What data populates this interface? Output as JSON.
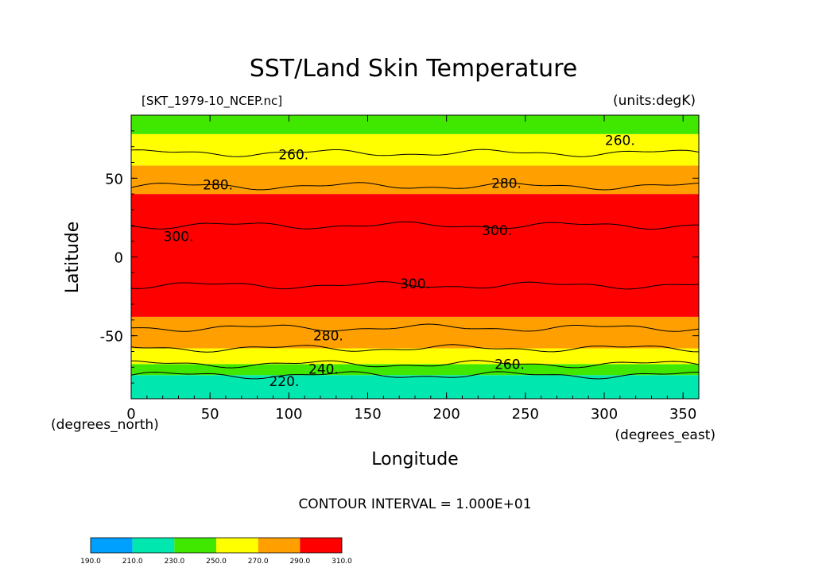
{
  "chart_data": {
    "type": "heatmap",
    "title": "SST/Land Skin Temperature",
    "file_label": "[SKT_1979-10_NCEP.nc]",
    "units_label": "(units:degK)",
    "xlabel": "Longitude",
    "ylabel": "Latitude",
    "x_units": "(degrees_east)",
    "y_units": "(degrees_north)",
    "xlim": [
      0,
      360
    ],
    "ylim": [
      -90,
      90
    ],
    "x_ticks": [
      0,
      50,
      100,
      150,
      200,
      250,
      300,
      350
    ],
    "y_ticks": [
      -50,
      0,
      50
    ],
    "contour_interval_text": "CONTOUR INTERVAL = 1.000E+01",
    "colorbar": {
      "levels": [
        "190.0",
        "210.0",
        "230.0",
        "250.0",
        "270.0",
        "290.0",
        "310.0"
      ],
      "colors": [
        "#00a0ff",
        "#00e8b0",
        "#40e800",
        "#ffff00",
        "#ffa000",
        "#ff0000"
      ]
    },
    "contour_labels": [
      {
        "text": "260.",
        "lon": 103,
        "lat": 65
      },
      {
        "text": "280.",
        "lon": 55,
        "lat": 46
      },
      {
        "text": "280.",
        "lon": 238,
        "lat": 47
      },
      {
        "text": "260.",
        "lon": 310,
        "lat": 74
      },
      {
        "text": "300.",
        "lon": 30,
        "lat": 13
      },
      {
        "text": "300.",
        "lon": 232,
        "lat": 17
      },
      {
        "text": "300.",
        "lon": 180,
        "lat": -17
      },
      {
        "text": "280.",
        "lon": 125,
        "lat": -50
      },
      {
        "text": "260.",
        "lon": 240,
        "lat": -68
      },
      {
        "text": "240.",
        "lon": 122,
        "lat": -71
      },
      {
        "text": "220.",
        "lon": 97,
        "lat": -79
      }
    ],
    "zonal_bands": [
      {
        "lat_from": -90,
        "lat_to": -75,
        "color": "#00e8b0"
      },
      {
        "lat_from": -75,
        "lat_to": -68,
        "color": "#40e800"
      },
      {
        "lat_from": -68,
        "lat_to": -58,
        "color": "#ffff00"
      },
      {
        "lat_from": -58,
        "lat_to": -38,
        "color": "#ffa000"
      },
      {
        "lat_from": -38,
        "lat_to": 40,
        "color": "#ff0000"
      },
      {
        "lat_from": 40,
        "lat_to": 58,
        "color": "#ffa000"
      },
      {
        "lat_from": 58,
        "lat_to": 78,
        "color": "#ffff00"
      },
      {
        "lat_from": 78,
        "lat_to": 90,
        "color": "#40e800"
      }
    ]
  }
}
